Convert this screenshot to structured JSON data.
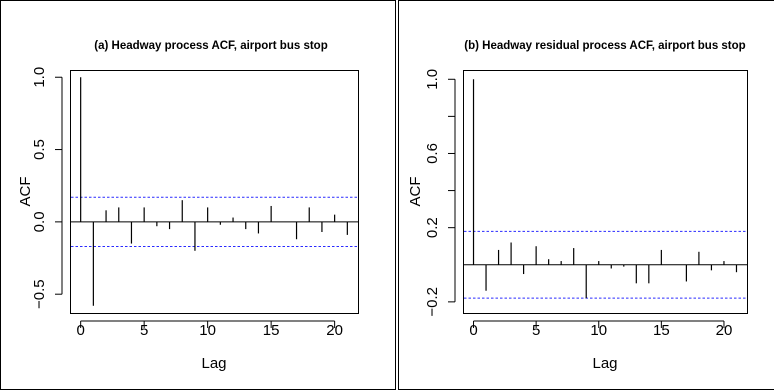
{
  "chart_data": [
    {
      "type": "bar",
      "title": "(a) Headway process ACF, airport bus stop",
      "xlabel": "Lag",
      "ylabel": "ACF",
      "xlim": [
        0,
        21
      ],
      "ylim": [
        -0.63,
        1.05
      ],
      "xticks": [
        0,
        5,
        10,
        15,
        20
      ],
      "xtick_labels": [
        "0",
        "5",
        "10",
        "15",
        "20"
      ],
      "yticks": [
        -0.5,
        0.0,
        0.5,
        1.0
      ],
      "ytick_labels": [
        "−0.5",
        "0.0",
        "0.5",
        "1.0"
      ],
      "confidence_band": [
        -0.17,
        0.17
      ],
      "confidence_color": "#2a2aff",
      "grid": false,
      "x": [
        0,
        1,
        2,
        3,
        4,
        5,
        6,
        7,
        8,
        9,
        10,
        11,
        12,
        13,
        14,
        15,
        16,
        17,
        18,
        19,
        20,
        21
      ],
      "values": [
        1.0,
        -0.58,
        0.08,
        0.1,
        -0.15,
        0.1,
        -0.03,
        -0.05,
        0.15,
        -0.2,
        0.1,
        -0.02,
        0.03,
        -0.05,
        -0.08,
        0.11,
        0.0,
        -0.12,
        0.1,
        -0.07,
        0.05,
        -0.09
      ]
    },
    {
      "type": "bar",
      "title": "(b) Headway residual process ACF, airport bus stop",
      "xlabel": "Lag",
      "ylabel": "ACF",
      "xlim": [
        0,
        21
      ],
      "ylim": [
        -0.26,
        1.05
      ],
      "xticks": [
        0,
        5,
        10,
        15,
        20
      ],
      "xtick_labels": [
        "0",
        "5",
        "10",
        "15",
        "20"
      ],
      "yticks": [
        -0.2,
        0.2,
        0.6,
        1.0
      ],
      "ytick_labels": [
        "−0.2",
        "0.2",
        "0.6",
        "1.0"
      ],
      "minor_yticks": [
        0.4,
        0.8
      ],
      "confidence_band": [
        -0.18,
        0.18
      ],
      "confidence_color": "#2a2aff",
      "grid": false,
      "x": [
        0,
        1,
        2,
        3,
        4,
        5,
        6,
        7,
        8,
        9,
        10,
        11,
        12,
        13,
        14,
        15,
        16,
        17,
        18,
        19,
        20,
        21
      ],
      "values": [
        1.0,
        -0.14,
        0.08,
        0.12,
        -0.05,
        0.1,
        0.03,
        0.02,
        0.09,
        -0.18,
        0.02,
        -0.02,
        -0.01,
        -0.1,
        -0.1,
        0.08,
        0.0,
        -0.09,
        0.07,
        -0.03,
        0.02,
        -0.04
      ]
    }
  ]
}
